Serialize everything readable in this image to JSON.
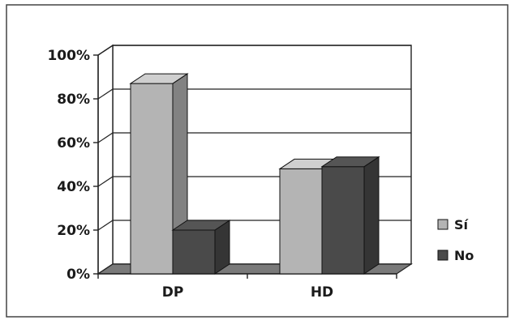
{
  "chart_data": {
    "type": "bar",
    "categories": [
      "DP",
      "HD"
    ],
    "series": [
      {
        "name": "Sí",
        "values": [
          87,
          48
        ],
        "color": "#b4b4b4"
      },
      {
        "name": "No",
        "values": [
          20,
          49
        ],
        "color": "#4a4a4a"
      }
    ],
    "ylim": [
      0,
      100
    ],
    "yticks": [
      "0%",
      "20%",
      "40%",
      "60%",
      "80%",
      "100%"
    ],
    "ytick_values": [
      0,
      20,
      40,
      60,
      80,
      100
    ],
    "grid": true,
    "legend_position": "right",
    "style": "3d-clustered-column"
  }
}
